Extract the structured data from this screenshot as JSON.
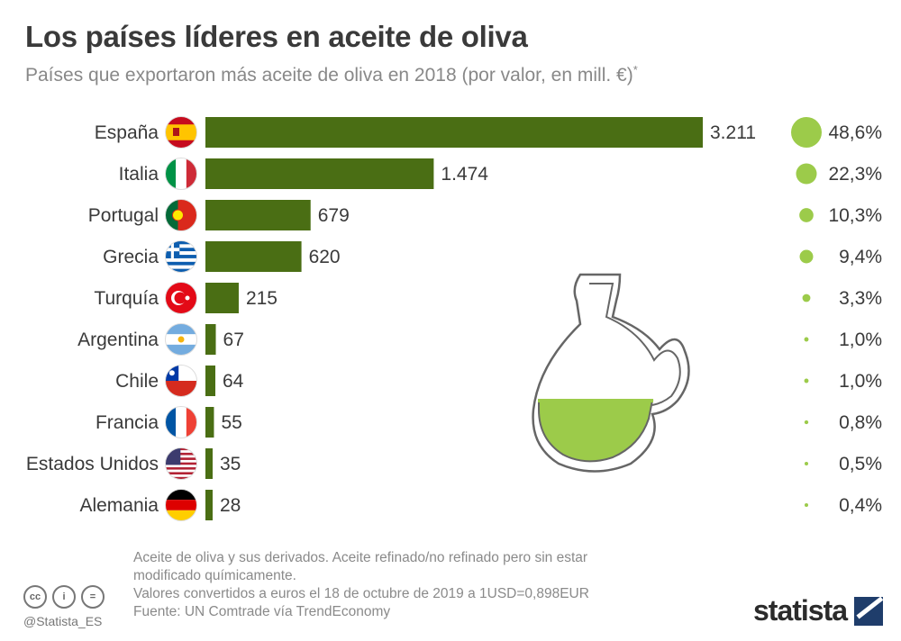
{
  "header": {
    "title": "Los países líderes en aceite de oliva",
    "subtitle": "Países que exportaron más aceite de oliva en 2018 (por valor, en mill. €)",
    "subtitle_mark": "*"
  },
  "chart_data": {
    "type": "bar",
    "orientation": "horizontal",
    "title": "Los países líderes en aceite de oliva",
    "subtitle": "Países que exportaron más aceite de oliva en 2018 (por valor, en mill. €)",
    "categories": [
      "España",
      "Italia",
      "Portugal",
      "Grecia",
      "Turquía",
      "Argentina",
      "Chile",
      "Francia",
      "Estados Unidos",
      "Alemania"
    ],
    "values": [
      3211,
      1474,
      679,
      620,
      215,
      67,
      64,
      55,
      35,
      28
    ],
    "value_labels": [
      "3.211",
      "1.474",
      "679",
      "620",
      "215",
      "67",
      "64",
      "55",
      "35",
      "28"
    ],
    "shares": [
      48.6,
      22.3,
      10.3,
      9.4,
      3.3,
      1.0,
      1.0,
      0.8,
      0.5,
      0.4
    ],
    "share_labels": [
      "48,6%",
      "22,3%",
      "10,3%",
      "9,4%",
      "3,3%",
      "1,0%",
      "1,0%",
      "0,8%",
      "0,5%",
      "0,4%"
    ],
    "flags": [
      "flag-spain",
      "flag-italy",
      "flag-portugal",
      "flag-greece",
      "flag-turkey",
      "flag-argentina",
      "flag-chile",
      "flag-france",
      "flag-usa",
      "flag-germany"
    ],
    "xlim": [
      0,
      3211
    ],
    "bar_color": "#4a6e14",
    "bubble_color": "#9ccb4a",
    "xlabel": "",
    "ylabel": ""
  },
  "footer": {
    "note_line1": "Aceite de oliva y sus derivados. Aceite refinado/no refinado pero sin estar",
    "note_line2": "modificado químicamente.",
    "note_line3": "Valores convertidos a euros el 18 de octubre de 2019 a 1USD=0,898EUR",
    "source": "Fuente: UN Comtrade vía TrendEconomy",
    "handle": "@Statista_ES",
    "brand": "statista",
    "cc_labels": [
      "cc",
      "i",
      "="
    ]
  }
}
